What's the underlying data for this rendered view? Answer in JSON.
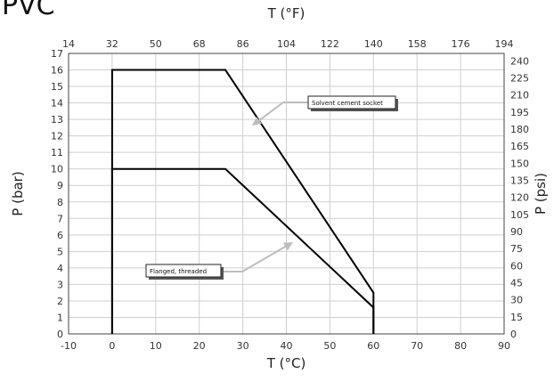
{
  "title": "PVC",
  "chart_data": {
    "type": "line",
    "title": "PVC",
    "xlabel": "T (°C)",
    "ylabel": "P (bar)",
    "x2label": "T (°F)",
    "y2label": "P (psi)",
    "xlim": [
      -10,
      90
    ],
    "ylim": [
      0,
      17
    ],
    "x_ticks": [
      -10,
      0,
      10,
      20,
      30,
      40,
      50,
      60,
      70,
      80,
      90
    ],
    "y_ticks": [
      0,
      1,
      2,
      3,
      4,
      5,
      6,
      7,
      8,
      9,
      10,
      11,
      12,
      13,
      14,
      15,
      16,
      17
    ],
    "x2_ticks": [
      14,
      32,
      50,
      68,
      86,
      104,
      122,
      140,
      158,
      176,
      194
    ],
    "y2_ticks": [
      0,
      15,
      30,
      45,
      60,
      75,
      90,
      105,
      120,
      135,
      150,
      165,
      180,
      195,
      210,
      225,
      240
    ],
    "grid": true,
    "series": [
      {
        "name": "Solvent cement socket",
        "x": [
          0,
          0,
          26,
          60,
          60
        ],
        "y": [
          0,
          16,
          16,
          2.5,
          0
        ]
      },
      {
        "name": "Flanged, threaded",
        "x": [
          0,
          0,
          26,
          60,
          60
        ],
        "y": [
          0,
          10,
          10,
          1.6,
          0
        ]
      }
    ],
    "annotations": [
      {
        "text": "Solvent cement socket",
        "series": 0
      },
      {
        "text": "Flanged, threaded",
        "series": 1
      }
    ]
  }
}
